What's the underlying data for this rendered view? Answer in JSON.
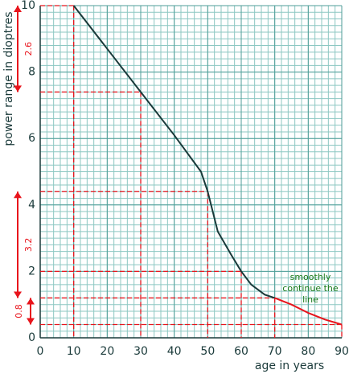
{
  "chart_data": {
    "type": "line",
    "xlabel": "age in years",
    "ylabel": "power range in dioptres",
    "xlim": [
      0,
      90
    ],
    "ylim": [
      0,
      10
    ],
    "xticks": [
      0,
      10,
      20,
      30,
      40,
      50,
      60,
      70,
      80,
      90
    ],
    "yticks": [
      0,
      2,
      4,
      6,
      8,
      10
    ],
    "grid": true,
    "xminor_step": 2,
    "yminor_step": 0.2,
    "series": [
      {
        "color": "#1a3a3a",
        "x": [
          10,
          20,
          30,
          40,
          48,
          50,
          53,
          57,
          60,
          63,
          67,
          70
        ],
        "values": [
          10,
          8.7,
          7.4,
          6.1,
          5.0,
          4.4,
          3.2,
          2.5,
          2.0,
          1.6,
          1.3,
          1.2
        ]
      },
      {
        "color": "#e8141c",
        "x": [
          70,
          75,
          80,
          85,
          90
        ],
        "values": [
          1.2,
          1.0,
          0.75,
          0.55,
          0.4
        ]
      }
    ],
    "guides": [
      {
        "x": 10,
        "y": 10
      },
      {
        "x": 30,
        "y": 7.4
      },
      {
        "x": 50,
        "y": 4.4
      },
      {
        "x": 60,
        "y": 2.0
      },
      {
        "x": 70,
        "y": 1.2
      },
      {
        "x": 90,
        "y": 0.4
      }
    ],
    "guide_color": "#e8141c",
    "ranges": [
      {
        "from": 10,
        "to": 7.4,
        "label": "2.6"
      },
      {
        "from": 4.4,
        "to": 1.2,
        "label": "3.2"
      },
      {
        "from": 1.2,
        "to": 0.4,
        "label": "0.8"
      }
    ],
    "annotation": {
      "lines": [
        "smoothly",
        "continue the",
        "line"
      ],
      "color": "#1a7a1a"
    }
  }
}
